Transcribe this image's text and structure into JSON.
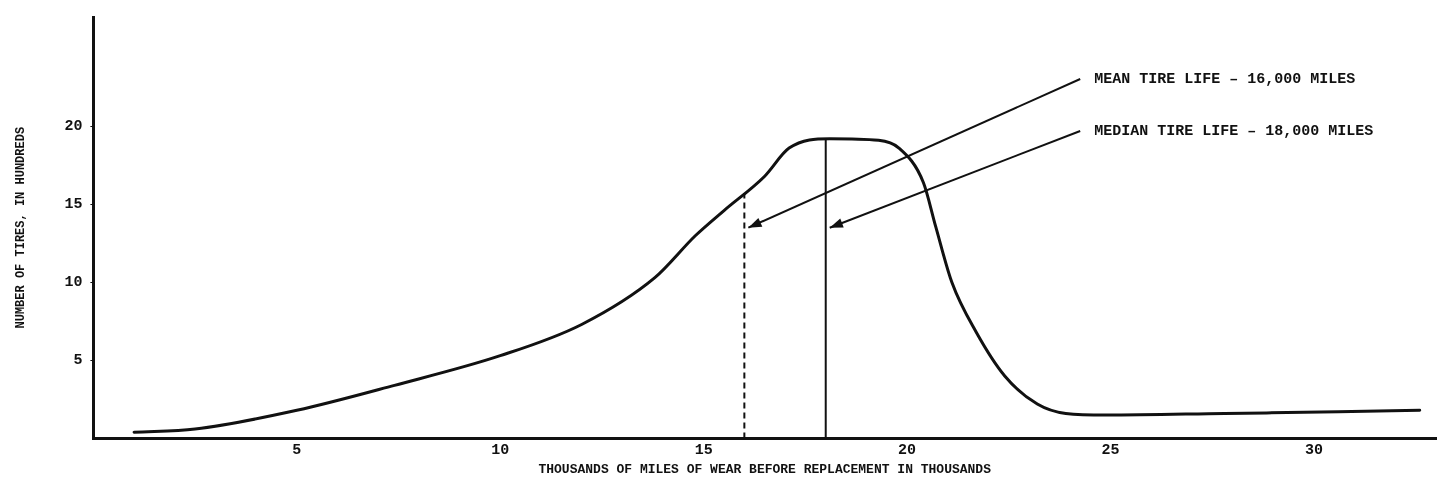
{
  "chart_data": {
    "type": "line",
    "xlabel": "THOUSANDS OF MILES OF WEAR BEFORE REPLACEMENT IN THOUSANDS",
    "ylabel": "NUMBER OF TIRES, IN HUNDREDS",
    "x": [
      1.0,
      2.5,
      5.0,
      7.4,
      10.0,
      12.0,
      13.8,
      14.8,
      15.5,
      16.5,
      17.1,
      18.1,
      19.3,
      19.8,
      20.4,
      20.7,
      21.1,
      21.7,
      22.4,
      23.2,
      23.9,
      24.9,
      27.8,
      30.6,
      32.6
    ],
    "series": [
      {
        "color": "#111111",
        "values": [
          0.4,
          0.6,
          1.8,
          3.4,
          5.3,
          7.3,
          10.3,
          13.0,
          14.6,
          16.8,
          18.6,
          19.2,
          19.1,
          18.6,
          16.4,
          13.6,
          10.0,
          6.8,
          4.0,
          2.2,
          1.6,
          1.5,
          1.6,
          1.7,
          1.8
        ]
      }
    ],
    "xlim": [
      0,
      33
    ],
    "xticks": [
      5,
      10,
      15,
      20,
      25,
      30
    ],
    "ylim": [
      0,
      27
    ],
    "yticks": [
      5,
      10,
      15,
      20
    ],
    "grid": false,
    "legend": false,
    "marker": "none",
    "line_style": "solid",
    "ref_lines": [
      {
        "axis": "x",
        "value": 16,
        "label": "MEAN TIRE LIFE – 16,000 MILES",
        "line_style": "dashed",
        "color": "#111111"
      },
      {
        "axis": "x",
        "value": 18,
        "label": "MEDIAN TIRE LIFE – 18,000 MILES",
        "line_style": "solid",
        "color": "#111111"
      }
    ]
  }
}
